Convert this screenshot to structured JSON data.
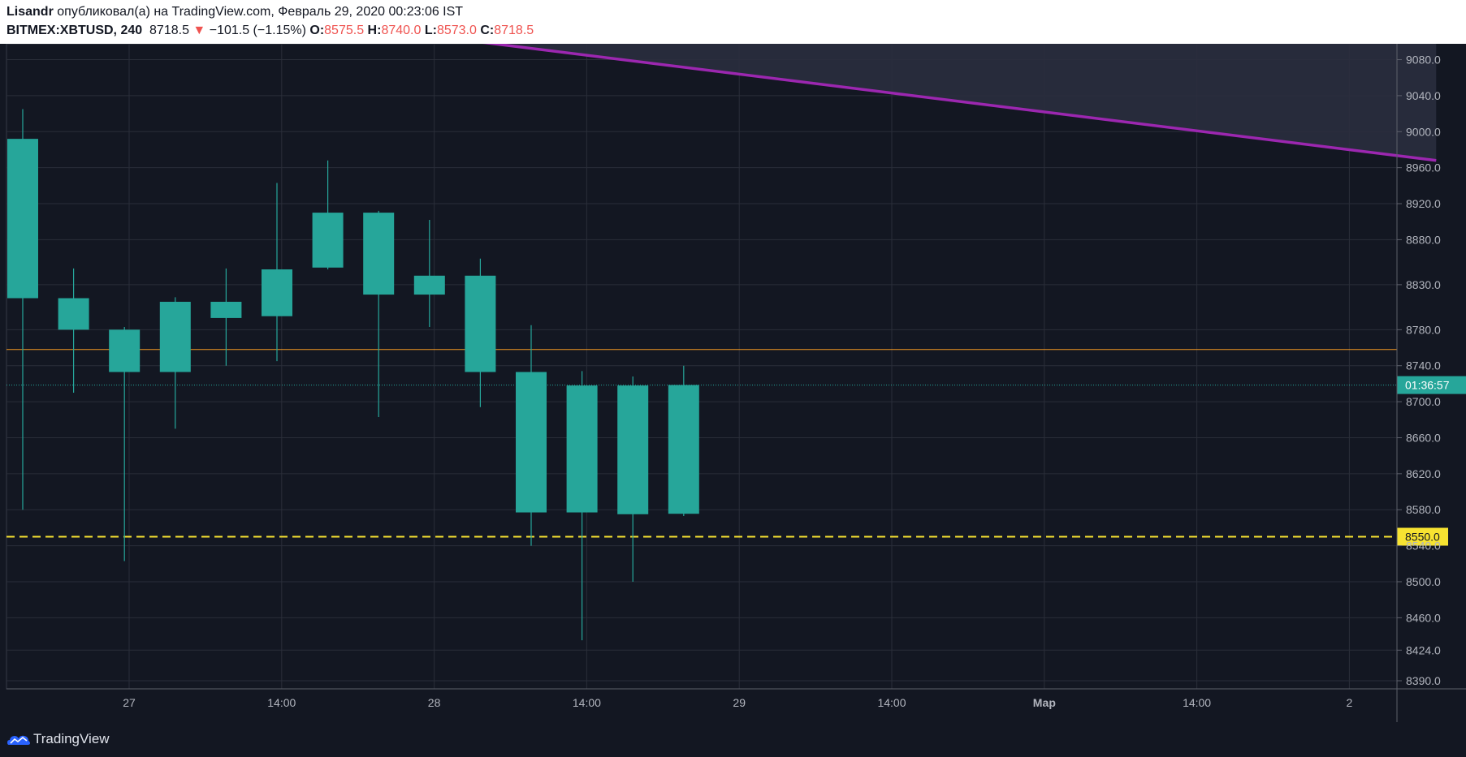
{
  "header": {
    "author": "Lisandr",
    "published_text": "опубликовал(а) на TradingView.com, Февраль 29, 2020 00:23:06 IST",
    "symbol": "BITMEX:XBTUSD, 240",
    "last_price": "8718.5",
    "change_arrow": "▼",
    "change": "−101.5 (−1.15%)",
    "open_label": "O:",
    "open": "8575.5",
    "high_label": "H:",
    "high": "8740.0",
    "low_label": "L:",
    "low": "8573.0",
    "close_label": "C:",
    "close": "8718.5"
  },
  "footer": {
    "brand": "TradingView"
  },
  "colors": {
    "background": "#131722",
    "grid": "#2a2e39",
    "up": "#26a69a",
    "down": "#ef5350",
    "trendline": "#9c27b0",
    "trendline_fill": "#2a2d3e",
    "horizontal_line": "#f59a23",
    "dashed_level": "#f7e331",
    "current_price": "#26a69a"
  },
  "chart_data": {
    "type": "candlestick",
    "price_axis_ticks": [
      "9080.0",
      "9040.0",
      "9000.0",
      "8960.0",
      "8920.0",
      "8880.0",
      "8830.0",
      "8780.0",
      "8740.0",
      "8700.0",
      "8660.0",
      "8620.0",
      "8580.0",
      "8540.0",
      "8500.0",
      "8460.0",
      "8424.0",
      "8390.0"
    ],
    "time_axis_ticks": [
      "27",
      "14:00",
      "28",
      "14:00",
      "29",
      "14:00",
      "Мар",
      "14:00",
      "2"
    ],
    "time_axis_bold": [
      false,
      false,
      false,
      false,
      false,
      false,
      true,
      false,
      false
    ],
    "candles": [
      {
        "open": 8815,
        "high": 9025,
        "low": 8580,
        "close": 8992
      },
      {
        "open": 8780,
        "high": 8848,
        "low": 8710,
        "close": 8815
      },
      {
        "open": 8733,
        "high": 8783,
        "low": 8523,
        "close": 8780
      },
      {
        "open": 8733,
        "high": 8816,
        "low": 8670,
        "close": 8811
      },
      {
        "open": 8793,
        "high": 8848,
        "low": 8740,
        "close": 8811
      },
      {
        "open": 8795,
        "high": 8943,
        "low": 8745,
        "close": 8847
      },
      {
        "open": 8849,
        "high": 8968,
        "low": 8847,
        "close": 8910
      },
      {
        "open": 8819,
        "high": 8912,
        "low": 8683,
        "close": 8910
      },
      {
        "open": 8819,
        "high": 8902,
        "low": 8783,
        "close": 8840
      },
      {
        "open": 8733,
        "high": 8859,
        "low": 8694,
        "close": 8840
      },
      {
        "open": 8577,
        "high": 8785,
        "low": 8540,
        "close": 8733
      },
      {
        "open": 8577,
        "high": 8734,
        "low": 8435,
        "close": 8718
      },
      {
        "open": 8575,
        "high": 8728,
        "low": 8500,
        "close": 8718
      },
      {
        "open": 8575.5,
        "high": 8740.0,
        "low": 8573.0,
        "close": 8718.5
      }
    ],
    "current_price": 8718.5,
    "countdown": "01:36:57",
    "horizontal_line": 8758,
    "dashed_level": 8550.0,
    "dashed_level_label": "8550.0",
    "trendline": [
      {
        "bar": 8.5,
        "price": 9103
      },
      {
        "bar": 27.8,
        "price": 8968
      }
    ],
    "grid": true,
    "ylim": [
      8381,
      9103
    ]
  }
}
